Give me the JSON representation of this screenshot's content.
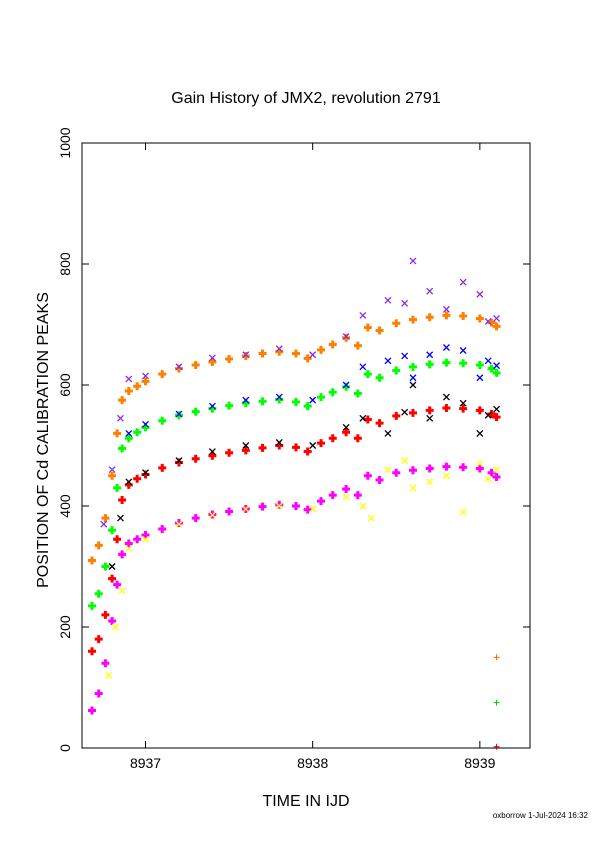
{
  "chart_data": {
    "type": "scatter",
    "title": "Gain History of JMX2, revolution 2791",
    "xlabel": "TIME IN IJD",
    "ylabel": "POSITION OF Cd CALIBRATION PEAKS",
    "xlim": [
      8936.62,
      8939.3
    ],
    "ylim": [
      0,
      1000
    ],
    "xticks": [
      8937,
      8938,
      8939
    ],
    "yticks": [
      0,
      200,
      400,
      600,
      800,
      1000
    ],
    "grid": false,
    "legend": "none",
    "series": [
      {
        "color": "#ff8000",
        "marker": "plus-thick",
        "points": [
          [
            8936.68,
            310
          ],
          [
            8936.72,
            335
          ],
          [
            8936.76,
            380
          ],
          [
            8936.8,
            450
          ],
          [
            8936.83,
            520
          ],
          [
            8936.86,
            575
          ],
          [
            8936.9,
            590
          ],
          [
            8936.95,
            598
          ],
          [
            8937.0,
            606
          ],
          [
            8937.1,
            618
          ],
          [
            8937.2,
            627
          ],
          [
            8937.3,
            633
          ],
          [
            8937.4,
            638
          ],
          [
            8937.5,
            643
          ],
          [
            8937.6,
            648
          ],
          [
            8937.7,
            652
          ],
          [
            8937.8,
            655
          ],
          [
            8937.9,
            652
          ],
          [
            8937.97,
            644
          ],
          [
            8938.05,
            658
          ],
          [
            8938.12,
            667
          ],
          [
            8938.2,
            678
          ],
          [
            8938.27,
            665
          ],
          [
            8938.33,
            695
          ],
          [
            8938.4,
            690
          ],
          [
            8938.5,
            702
          ],
          [
            8938.6,
            708
          ],
          [
            8938.7,
            712
          ],
          [
            8938.8,
            715
          ],
          [
            8938.9,
            714
          ],
          [
            8939.0,
            710
          ],
          [
            8939.07,
            703
          ],
          [
            8939.1,
            697
          ]
        ]
      },
      {
        "color": "#8a2be2",
        "marker": "cross",
        "points": [
          [
            8936.75,
            370
          ],
          [
            8936.8,
            460
          ],
          [
            8936.85,
            545
          ],
          [
            8936.9,
            610
          ],
          [
            8937.0,
            615
          ],
          [
            8937.2,
            630
          ],
          [
            8937.4,
            645
          ],
          [
            8937.6,
            650
          ],
          [
            8937.8,
            660
          ],
          [
            8938.0,
            650
          ],
          [
            8938.2,
            680
          ],
          [
            8938.3,
            715
          ],
          [
            8938.45,
            740
          ],
          [
            8938.55,
            735
          ],
          [
            8938.6,
            805
          ],
          [
            8938.7,
            755
          ],
          [
            8938.8,
            725
          ],
          [
            8938.9,
            770
          ],
          [
            8939.0,
            750
          ],
          [
            8939.05,
            705
          ],
          [
            8939.1,
            710
          ]
        ]
      },
      {
        "color": "#00ff00",
        "marker": "plus-thick",
        "points": [
          [
            8936.68,
            235
          ],
          [
            8936.72,
            255
          ],
          [
            8936.76,
            300
          ],
          [
            8936.8,
            360
          ],
          [
            8936.83,
            430
          ],
          [
            8936.86,
            495
          ],
          [
            8936.9,
            512
          ],
          [
            8936.95,
            522
          ],
          [
            8937.0,
            530
          ],
          [
            8937.1,
            541
          ],
          [
            8937.2,
            550
          ],
          [
            8937.3,
            556
          ],
          [
            8937.4,
            561
          ],
          [
            8937.5,
            566
          ],
          [
            8937.6,
            570
          ],
          [
            8937.7,
            573
          ],
          [
            8937.8,
            576
          ],
          [
            8937.9,
            572
          ],
          [
            8937.97,
            565
          ],
          [
            8938.05,
            580
          ],
          [
            8938.12,
            588
          ],
          [
            8938.2,
            597
          ],
          [
            8938.27,
            586
          ],
          [
            8938.33,
            618
          ],
          [
            8938.4,
            612
          ],
          [
            8938.5,
            624
          ],
          [
            8938.6,
            630
          ],
          [
            8938.7,
            634
          ],
          [
            8938.8,
            637
          ],
          [
            8938.9,
            636
          ],
          [
            8939.0,
            633
          ],
          [
            8939.07,
            627
          ],
          [
            8939.1,
            620
          ]
        ]
      },
      {
        "color": "#0000ff",
        "marker": "cross",
        "points": [
          [
            8936.9,
            520
          ],
          [
            8937.0,
            535
          ],
          [
            8937.2,
            552
          ],
          [
            8937.4,
            565
          ],
          [
            8937.6,
            575
          ],
          [
            8937.8,
            580
          ],
          [
            8938.0,
            575
          ],
          [
            8938.2,
            600
          ],
          [
            8938.3,
            630
          ],
          [
            8938.45,
            640
          ],
          [
            8938.55,
            648
          ],
          [
            8938.6,
            612
          ],
          [
            8938.7,
            650
          ],
          [
            8938.8,
            662
          ],
          [
            8938.9,
            657
          ],
          [
            8939.0,
            612
          ],
          [
            8939.05,
            640
          ],
          [
            8939.1,
            632
          ]
        ]
      },
      {
        "color": "#ff0000",
        "marker": "plus-thick",
        "points": [
          [
            8936.68,
            160
          ],
          [
            8936.72,
            180
          ],
          [
            8936.76,
            220
          ],
          [
            8936.8,
            280
          ],
          [
            8936.83,
            345
          ],
          [
            8936.86,
            410
          ],
          [
            8936.9,
            435
          ],
          [
            8936.95,
            445
          ],
          [
            8937.0,
            452
          ],
          [
            8937.1,
            463
          ],
          [
            8937.2,
            472
          ],
          [
            8937.3,
            478
          ],
          [
            8937.4,
            483
          ],
          [
            8937.5,
            488
          ],
          [
            8937.6,
            492
          ],
          [
            8937.7,
            496
          ],
          [
            8937.8,
            500
          ],
          [
            8937.9,
            497
          ],
          [
            8937.97,
            490
          ],
          [
            8938.05,
            504
          ],
          [
            8938.12,
            512
          ],
          [
            8938.2,
            522
          ],
          [
            8938.27,
            512
          ],
          [
            8938.33,
            543
          ],
          [
            8938.4,
            537
          ],
          [
            8938.5,
            549
          ],
          [
            8938.6,
            554
          ],
          [
            8938.7,
            558
          ],
          [
            8938.8,
            562
          ],
          [
            8938.9,
            561
          ],
          [
            8939.0,
            558
          ],
          [
            8939.07,
            552
          ],
          [
            8939.1,
            547
          ]
        ]
      },
      {
        "color": "#000000",
        "marker": "cross",
        "points": [
          [
            8936.8,
            300
          ],
          [
            8936.85,
            380
          ],
          [
            8936.9,
            440
          ],
          [
            8937.0,
            455
          ],
          [
            8937.2,
            475
          ],
          [
            8937.4,
            490
          ],
          [
            8937.6,
            500
          ],
          [
            8937.8,
            505
          ],
          [
            8938.0,
            500
          ],
          [
            8938.2,
            530
          ],
          [
            8938.3,
            545
          ],
          [
            8938.45,
            520
          ],
          [
            8938.55,
            555
          ],
          [
            8938.6,
            600
          ],
          [
            8938.7,
            545
          ],
          [
            8938.8,
            580
          ],
          [
            8938.9,
            570
          ],
          [
            8939.0,
            520
          ],
          [
            8939.05,
            550
          ],
          [
            8939.1,
            560
          ]
        ]
      },
      {
        "color": "#ff00ff",
        "marker": "plus-thick",
        "points": [
          [
            8936.68,
            62
          ],
          [
            8936.72,
            90
          ],
          [
            8936.76,
            140
          ],
          [
            8936.8,
            210
          ],
          [
            8936.83,
            270
          ],
          [
            8936.86,
            320
          ],
          [
            8936.9,
            338
          ],
          [
            8936.95,
            345
          ],
          [
            8937.0,
            352
          ],
          [
            8937.1,
            362
          ],
          [
            8937.2,
            372
          ],
          [
            8937.3,
            380
          ],
          [
            8937.4,
            386
          ],
          [
            8937.5,
            391
          ],
          [
            8937.6,
            395
          ],
          [
            8937.7,
            399
          ],
          [
            8937.8,
            402
          ],
          [
            8937.9,
            400
          ],
          [
            8937.97,
            394
          ],
          [
            8938.05,
            408
          ],
          [
            8938.12,
            418
          ],
          [
            8938.2,
            428
          ],
          [
            8938.27,
            418
          ],
          [
            8938.33,
            450
          ],
          [
            8938.4,
            443
          ],
          [
            8938.5,
            455
          ],
          [
            8938.6,
            459
          ],
          [
            8938.7,
            462
          ],
          [
            8938.8,
            465
          ],
          [
            8938.9,
            464
          ],
          [
            8939.0,
            462
          ],
          [
            8939.07,
            455
          ],
          [
            8939.1,
            448
          ]
        ]
      },
      {
        "color": "#ffff00",
        "marker": "cross",
        "points": [
          [
            8936.78,
            120
          ],
          [
            8936.82,
            200
          ],
          [
            8936.86,
            260
          ],
          [
            8936.9,
            330
          ],
          [
            8937.0,
            345
          ],
          [
            8937.2,
            370
          ],
          [
            8937.4,
            385
          ],
          [
            8937.6,
            395
          ],
          [
            8937.8,
            400
          ],
          [
            8938.0,
            395
          ],
          [
            8938.2,
            415
          ],
          [
            8938.3,
            400
          ],
          [
            8938.35,
            380
          ],
          [
            8938.45,
            460
          ],
          [
            8938.55,
            475
          ],
          [
            8938.6,
            430
          ],
          [
            8938.7,
            440
          ],
          [
            8938.8,
            450
          ],
          [
            8938.9,
            390
          ],
          [
            8939.0,
            470
          ],
          [
            8939.05,
            445
          ],
          [
            8939.1,
            460
          ]
        ]
      },
      {
        "color": "#ff6600",
        "marker": "plus",
        "points": [
          [
            8939.1,
            150
          ]
        ]
      },
      {
        "color": "#00cc00",
        "marker": "plus",
        "points": [
          [
            8939.1,
            75
          ]
        ]
      },
      {
        "color": "#cc0000",
        "marker": "plus",
        "points": [
          [
            8939.1,
            2
          ]
        ]
      }
    ]
  },
  "footer": "oxborrow 1-Jul-2024 16:32"
}
